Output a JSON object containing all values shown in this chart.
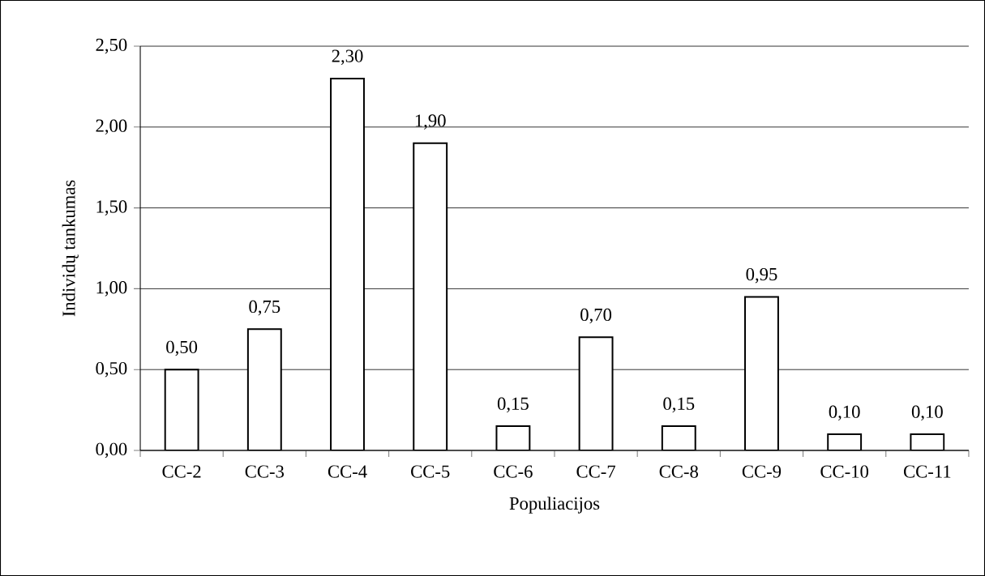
{
  "chart_data": {
    "type": "bar",
    "xlabel": "Populiacijos",
    "ylabel": "Individų tankumas",
    "categories": [
      "CC-2",
      "CC-3",
      "CC-4",
      "CC-5",
      "CC-6",
      "CC-7",
      "CC-8",
      "CC-9",
      "CC-10",
      "CC-11"
    ],
    "values": [
      0.5,
      0.75,
      2.3,
      1.9,
      0.15,
      0.7,
      0.15,
      0.95,
      0.1,
      0.1
    ],
    "value_labels": [
      "0,50",
      "0,75",
      "2,30",
      "1,90",
      "0,15",
      "0,70",
      "0,15",
      "0,95",
      "0,10",
      "0,10"
    ],
    "color": "#ffffff",
    "ylim": [
      0,
      2.5
    ],
    "yticks": [
      {
        "value": 0,
        "label": "0,00"
      },
      {
        "value": 0.5,
        "label": "0,50"
      },
      {
        "value": 1,
        "label": "1,00"
      },
      {
        "value": 1.5,
        "label": "1,50"
      },
      {
        "value": 2,
        "label": "2,00"
      },
      {
        "value": 2.5,
        "label": "2,50"
      }
    ],
    "grid": "y"
  }
}
